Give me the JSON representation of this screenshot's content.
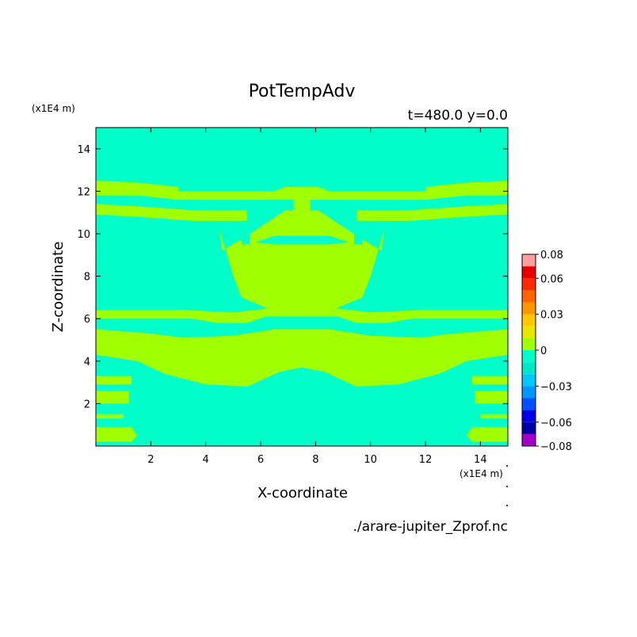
{
  "chart_data": {
    "type": "heatmap",
    "title": "PotTempAdv",
    "subtitle": "t=480.0 y=0.0",
    "xlabel": "X-coordinate",
    "ylabel": "Z-coordinate",
    "x_unit": "(x1E4 m)",
    "y_unit": "(x1E4 m)",
    "xlim": [
      0,
      15
    ],
    "ylim": [
      0,
      15
    ],
    "x_ticks": [
      2,
      4,
      6,
      8,
      10,
      12,
      14
    ],
    "y_ticks": [
      2,
      4,
      6,
      8,
      10,
      12,
      14
    ],
    "colorbar": {
      "levels": [
        -0.08,
        -0.07,
        -0.06,
        -0.05,
        -0.04,
        -0.03,
        -0.02,
        -0.01,
        0,
        0.01,
        0.02,
        0.03,
        0.04,
        0.05,
        0.06,
        0.07,
        0.08
      ],
      "colors": [
        "#a000c8",
        "#0000a0",
        "#0000e6",
        "#0050ff",
        "#0096ff",
        "#00c8ff",
        "#00e6c8",
        "#00ffc8",
        "#a0ff00",
        "#e6e600",
        "#ffc800",
        "#ff9600",
        "#ff6400",
        "#ff2800",
        "#e60000",
        "#ffa0a0"
      ],
      "tick_labels": [
        "0.08",
        "0.06",
        "0.03",
        "0",
        "−0.03",
        "−0.06",
        "−0.08"
      ],
      "tick_values": [
        0.08,
        0.06,
        0.03,
        0,
        -0.03,
        -0.06,
        -0.08
      ]
    },
    "field": {
      "background_value_range": [
        -0.01,
        0
      ],
      "background_color": "#00ffc8",
      "feature_value_range": [
        0,
        0.01
      ],
      "feature_color": "#a0ff00",
      "regions": [
        {
          "name": "central-plume",
          "polygon": [
            [
              4.6,
              9.2
            ],
            [
              5.5,
              9.9
            ],
            [
              6.9,
              11.1
            ],
            [
              7.2,
              11.1
            ],
            [
              7.2,
              12.0
            ],
            [
              7.8,
              12.0
            ],
            [
              7.8,
              11.1
            ],
            [
              8.1,
              11.1
            ],
            [
              9.5,
              9.9
            ],
            [
              10.4,
              9.2
            ],
            [
              10.5,
              10.2
            ],
            [
              10.0,
              8.0
            ],
            [
              9.7,
              7.0
            ],
            [
              8.6,
              6.4
            ],
            [
              7.5,
              6.5
            ],
            [
              6.4,
              6.4
            ],
            [
              5.3,
              7.0
            ],
            [
              5.0,
              8.0
            ],
            [
              4.5,
              10.2
            ]
          ]
        },
        {
          "name": "band-upper",
          "polygon": [
            [
              0,
              12.5
            ],
            [
              1.6,
              12.4
            ],
            [
              3.0,
              12.2
            ],
            [
              3.0,
              12.0
            ],
            [
              6.5,
              12.0
            ],
            [
              6.9,
              12.2
            ],
            [
              8.1,
              12.2
            ],
            [
              8.5,
              12.0
            ],
            [
              12.0,
              12.0
            ],
            [
              12.0,
              12.2
            ],
            [
              13.4,
              12.4
            ],
            [
              15,
              12.5
            ],
            [
              15,
              11.8
            ],
            [
              13.5,
              11.8
            ],
            [
              12.0,
              11.6
            ],
            [
              3.0,
              11.6
            ],
            [
              1.5,
              11.8
            ],
            [
              0,
              11.8
            ]
          ]
        },
        {
          "name": "band-mid-upper",
          "polygon": [
            [
              0,
              11.4
            ],
            [
              1.5,
              11.3
            ],
            [
              3.6,
              11.1
            ],
            [
              5.5,
              11.1
            ],
            [
              5.5,
              10.6
            ],
            [
              3.6,
              10.6
            ],
            [
              1.5,
              10.8
            ],
            [
              0,
              10.9
            ]
          ]
        },
        {
          "name": "band-mid-upper-right",
          "polygon": [
            [
              15,
              11.4
            ],
            [
              13.5,
              11.3
            ],
            [
              11.4,
              11.1
            ],
            [
              9.5,
              11.1
            ],
            [
              9.5,
              10.6
            ],
            [
              11.4,
              10.6
            ],
            [
              13.5,
              10.8
            ],
            [
              15,
              10.9
            ]
          ]
        },
        {
          "name": "band-middle",
          "polygon": [
            [
              0,
              6.4
            ],
            [
              3.3,
              6.4
            ],
            [
              5.0,
              6.3
            ],
            [
              6.4,
              6.5
            ],
            [
              8.6,
              6.5
            ],
            [
              10.0,
              6.3
            ],
            [
              11.7,
              6.4
            ],
            [
              15,
              6.4
            ],
            [
              15,
              6.0
            ],
            [
              11.5,
              6.0
            ],
            [
              10.6,
              5.8
            ],
            [
              9.5,
              5.8
            ],
            [
              8.8,
              6.1
            ],
            [
              6.2,
              6.1
            ],
            [
              5.5,
              5.8
            ],
            [
              4.4,
              5.8
            ],
            [
              3.5,
              6.0
            ],
            [
              0,
              6.0
            ]
          ]
        },
        {
          "name": "lower-lobe",
          "polygon": [
            [
              0,
              5.5
            ],
            [
              2.0,
              5.3
            ],
            [
              3.2,
              5.1
            ],
            [
              5.0,
              5.2
            ],
            [
              6.5,
              5.5
            ],
            [
              8.5,
              5.5
            ],
            [
              10.0,
              5.2
            ],
            [
              11.8,
              5.1
            ],
            [
              13.0,
              5.3
            ],
            [
              15,
              5.5
            ],
            [
              15,
              4.3
            ],
            [
              13.5,
              4.0
            ],
            [
              12.5,
              3.4
            ],
            [
              11.0,
              2.9
            ],
            [
              9.5,
              2.8
            ],
            [
              8.3,
              3.5
            ],
            [
              7.5,
              3.7
            ],
            [
              6.7,
              3.5
            ],
            [
              5.5,
              2.8
            ],
            [
              4.0,
              2.9
            ],
            [
              2.5,
              3.4
            ],
            [
              1.5,
              4.0
            ],
            [
              0,
              4.3
            ]
          ]
        },
        {
          "name": "left-fringe-1",
          "polygon": [
            [
              0,
              3.3
            ],
            [
              1.3,
              3.3
            ],
            [
              1.3,
              2.9
            ],
            [
              0,
              2.9
            ]
          ]
        },
        {
          "name": "left-fringe-2",
          "polygon": [
            [
              0,
              2.6
            ],
            [
              1.2,
              2.6
            ],
            [
              1.2,
              2.0
            ],
            [
              0,
              2.0
            ]
          ]
        },
        {
          "name": "left-fringe-3",
          "polygon": [
            [
              0,
              1.5
            ],
            [
              1.0,
              1.5
            ],
            [
              1.0,
              1.3
            ],
            [
              0,
              1.3
            ]
          ]
        },
        {
          "name": "left-fringe-4",
          "polygon": [
            [
              0,
              0.9
            ],
            [
              1.3,
              0.9
            ],
            [
              1.5,
              0.5
            ],
            [
              1.3,
              0.2
            ],
            [
              0,
              0.2
            ]
          ]
        },
        {
          "name": "right-fringe-1",
          "polygon": [
            [
              15,
              3.3
            ],
            [
              13.7,
              3.3
            ],
            [
              13.7,
              2.9
            ],
            [
              15,
              2.9
            ]
          ]
        },
        {
          "name": "right-fringe-2",
          "polygon": [
            [
              15,
              2.6
            ],
            [
              13.8,
              2.6
            ],
            [
              13.8,
              2.0
            ],
            [
              15,
              2.0
            ]
          ]
        },
        {
          "name": "right-fringe-3",
          "polygon": [
            [
              15,
              1.5
            ],
            [
              14.0,
              1.5
            ],
            [
              14.0,
              1.3
            ],
            [
              15,
              1.3
            ]
          ]
        },
        {
          "name": "right-fringe-4",
          "polygon": [
            [
              15,
              0.9
            ],
            [
              13.7,
              0.9
            ],
            [
              13.5,
              0.5
            ],
            [
              13.7,
              0.2
            ],
            [
              15,
              0.2
            ]
          ]
        }
      ],
      "holes": [
        {
          "name": "left-notch",
          "polygon": [
            [
              5.3,
              9.5
            ],
            [
              5.6,
              9.5
            ],
            [
              5.6,
              10.6
            ],
            [
              5.3,
              10.6
            ]
          ]
        },
        {
          "name": "right-notch",
          "polygon": [
            [
              9.4,
              9.5
            ],
            [
              9.7,
              9.5
            ],
            [
              9.7,
              10.6
            ],
            [
              9.4,
              10.6
            ]
          ]
        },
        {
          "name": "central-inner-hole",
          "polygon": [
            [
              5.8,
              9.6
            ],
            [
              6.5,
              9.9
            ],
            [
              8.5,
              9.9
            ],
            [
              9.2,
              9.6
            ],
            [
              8.5,
              9.5
            ],
            [
              6.5,
              9.5
            ]
          ]
        }
      ]
    }
  },
  "footer": {
    "source_file": "./arare-jupiter_Zprof.nc"
  }
}
